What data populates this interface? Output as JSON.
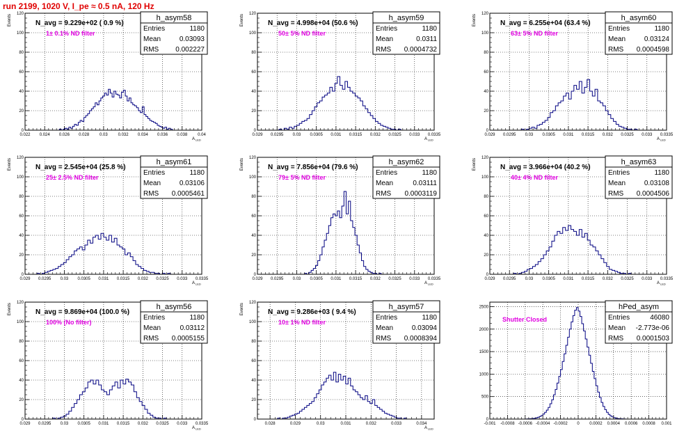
{
  "title": "run 2199,  1020 V, I_pe ≈ 0.5 nA, 120 Hz",
  "colors": {
    "title": "#e00000",
    "filter_label": "#e000e0",
    "histogram": "#000080",
    "grid": "#000000"
  },
  "chart_data": [
    {
      "type": "histogram",
      "name": "h_asym58",
      "n_avg_label": "N_avg = 9.229e+02 ( 0.9 %)",
      "filter_label": "1± 0.1% ND filter",
      "stats": [
        [
          "Entries",
          "1180"
        ],
        [
          "Mean",
          "0.03093"
        ],
        [
          "RMS",
          "0.002227"
        ]
      ],
      "ylabel": "Events",
      "xlabel": "A_LED",
      "xlim": [
        0.022,
        0.04
      ],
      "ylim": [
        0,
        120
      ],
      "xticks": [
        0.022,
        0.024,
        0.026,
        0.028,
        0.03,
        0.032,
        0.034,
        0.036,
        0.038,
        0.04
      ],
      "xtick_labels": [
        "0.022",
        "0.024",
        "0.026",
        "0.028",
        "0.03",
        "0.032",
        "0.034",
        "0.036",
        "0.038",
        "0.04"
      ],
      "yticks": [
        0,
        20,
        40,
        60,
        80,
        100,
        120
      ],
      "ytick_labels": [
        "0",
        "20",
        "40",
        "60",
        "80",
        "100",
        "120"
      ],
      "bin_edges": [
        0.0255,
        0.037
      ],
      "counts": [
        1,
        0,
        1,
        2,
        1,
        3,
        2,
        4,
        6,
        5,
        8,
        10,
        9,
        13,
        15,
        17,
        20,
        22,
        24,
        28,
        26,
        30,
        33,
        35,
        38,
        36,
        42,
        38,
        34,
        40,
        37,
        36,
        33,
        39,
        41,
        35,
        30,
        33,
        28,
        26,
        25,
        23,
        20,
        18,
        24,
        16,
        14,
        12,
        10,
        9,
        8,
        7,
        5,
        4,
        3,
        2,
        3,
        1,
        2,
        1
      ]
    },
    {
      "type": "histogram",
      "name": "h_asym59",
      "n_avg_label": "N_avg = 4.998e+04 (50.6 %)",
      "filter_label": "50± 5% ND filter",
      "stats": [
        [
          "Entries",
          "1180"
        ],
        [
          "Mean",
          "0.0311"
        ],
        [
          "RMS",
          "0.0004732"
        ]
      ],
      "ylabel": "Events",
      "xlabel": "A_LED",
      "xlim": [
        0.029,
        0.0335
      ],
      "ylim": [
        0,
        120
      ],
      "xticks": [
        0.029,
        0.0295,
        0.03,
        0.0305,
        0.031,
        0.0315,
        0.032,
        0.0325,
        0.033,
        0.0335
      ],
      "xtick_labels": [
        "0.029",
        "0.0295",
        "0.03",
        "0.0305",
        "0.031",
        "0.0315",
        "0.032",
        "0.0325",
        "0.033",
        "0.0335"
      ],
      "yticks": [
        0,
        20,
        40,
        60,
        80,
        100,
        120
      ],
      "ytick_labels": [
        "0",
        "20",
        "40",
        "60",
        "80",
        "100",
        "120"
      ],
      "bin_edges": [
        0.02955,
        0.03265
      ],
      "counts": [
        1,
        0,
        2,
        1,
        3,
        2,
        4,
        5,
        7,
        9,
        10,
        12,
        16,
        20,
        24,
        28,
        30,
        34,
        36,
        38,
        44,
        40,
        48,
        55,
        46,
        42,
        50,
        44,
        40,
        38,
        35,
        33,
        30,
        25,
        22,
        18,
        15,
        12,
        9,
        7,
        5,
        4,
        3,
        2,
        1,
        1,
        0,
        1
      ]
    },
    {
      "type": "histogram",
      "name": "h_asym60",
      "n_avg_label": "N_avg = 6.255e+04 (63.4 %)",
      "filter_label": "63± 5% ND filter",
      "stats": [
        [
          "Entries",
          "1180"
        ],
        [
          "Mean",
          "0.03124"
        ],
        [
          "RMS",
          "0.0004598"
        ]
      ],
      "ylabel": "Events",
      "xlabel": "A_LED",
      "xlim": [
        0.029,
        0.0335
      ],
      "ylim": [
        0,
        120
      ],
      "xticks": [
        0.029,
        0.0295,
        0.03,
        0.0305,
        0.031,
        0.0315,
        0.032,
        0.0325,
        0.033,
        0.0335
      ],
      "xtick_labels": [
        "0.029",
        "0.0295",
        "0.03",
        "0.0305",
        "0.031",
        "0.0315",
        "0.032",
        "0.0325",
        "0.033",
        "0.0335"
      ],
      "yticks": [
        0,
        20,
        40,
        60,
        80,
        100,
        120
      ],
      "ytick_labels": [
        "0",
        "20",
        "40",
        "60",
        "80",
        "100",
        "120"
      ],
      "bin_edges": [
        0.0298,
        0.03275
      ],
      "counts": [
        1,
        0,
        1,
        2,
        3,
        2,
        5,
        6,
        8,
        10,
        13,
        18,
        20,
        25,
        28,
        30,
        35,
        38,
        32,
        40,
        46,
        42,
        50,
        38,
        44,
        52,
        40,
        35,
        42,
        30,
        28,
        25,
        20,
        16,
        12,
        9,
        6,
        4,
        3,
        2,
        1,
        1,
        0,
        1
      ]
    },
    {
      "type": "histogram",
      "name": "h_asym61",
      "n_avg_label": "N_avg = 2.545e+04 (25.8 %)",
      "filter_label": "25± 2.5% ND filter",
      "stats": [
        [
          "Entries",
          "1180"
        ],
        [
          "Mean",
          "0.03106"
        ],
        [
          "RMS",
          "0.0005461"
        ]
      ],
      "ylabel": "Events",
      "xlabel": "A_LED",
      "xlim": [
        0.029,
        0.0335
      ],
      "ylim": [
        0,
        120
      ],
      "xticks": [
        0.029,
        0.0295,
        0.03,
        0.0305,
        0.031,
        0.0315,
        0.032,
        0.0325,
        0.033,
        0.0335
      ],
      "xtick_labels": [
        "0.029",
        "0.0295",
        "0.03",
        "0.0305",
        "0.031",
        "0.0315",
        "0.032",
        "0.0325",
        "0.033",
        "0.0335"
      ],
      "yticks": [
        0,
        20,
        40,
        60,
        80,
        100,
        120
      ],
      "ytick_labels": [
        "0",
        "20",
        "40",
        "60",
        "80",
        "100",
        "120"
      ],
      "bin_edges": [
        0.0293,
        0.0327
      ],
      "counts": [
        1,
        0,
        1,
        2,
        3,
        4,
        5,
        6,
        8,
        10,
        12,
        15,
        18,
        20,
        24,
        26,
        28,
        25,
        30,
        35,
        32,
        38,
        40,
        36,
        42,
        38,
        35,
        40,
        33,
        37,
        30,
        28,
        26,
        20,
        22,
        18,
        14,
        10,
        8,
        6,
        4,
        3,
        2,
        2,
        1,
        1,
        0,
        1,
        0,
        1
      ]
    },
    {
      "type": "histogram",
      "name": "h_asym62",
      "n_avg_label": "N_avg = 7.856e+04 (79.6 %)",
      "filter_label": "79± 5% ND filter",
      "stats": [
        [
          "Entries",
          "1180"
        ],
        [
          "Mean",
          "0.03111"
        ],
        [
          "RMS",
          "0.0003119"
        ]
      ],
      "ylabel": "Events",
      "xlabel": "A_LED",
      "xlim": [
        0.029,
        0.0335
      ],
      "ylim": [
        0,
        120
      ],
      "xticks": [
        0.029,
        0.0295,
        0.03,
        0.0305,
        0.031,
        0.0315,
        0.032,
        0.0325,
        0.033,
        0.0335
      ],
      "xtick_labels": [
        "0.029",
        "0.0295",
        "0.03",
        "0.0305",
        "0.031",
        "0.0315",
        "0.032",
        "0.0325",
        "0.033",
        "0.0335"
      ],
      "yticks": [
        0,
        20,
        40,
        60,
        80,
        100,
        120
      ],
      "ytick_labels": [
        "0",
        "20",
        "40",
        "60",
        "80",
        "100",
        "120"
      ],
      "bin_edges": [
        0.0302,
        0.03215
      ],
      "counts": [
        1,
        0,
        2,
        4,
        6,
        9,
        14,
        20,
        28,
        35,
        42,
        50,
        58,
        62,
        60,
        65,
        58,
        70,
        85,
        62,
        75,
        55,
        48,
        40,
        30,
        22,
        14,
        8,
        5,
        3,
        2,
        1,
        1,
        0,
        1
      ]
    },
    {
      "type": "histogram",
      "name": "h_asym63",
      "n_avg_label": "N_avg = 3.966e+04 (40.2 %)",
      "filter_label": "40± 4% ND filter",
      "stats": [
        [
          "Entries",
          "1180"
        ],
        [
          "Mean",
          "0.03108"
        ],
        [
          "RMS",
          "0.0004506"
        ]
      ],
      "ylabel": "Events",
      "xlabel": "A_LED",
      "xlim": [
        0.029,
        0.0335
      ],
      "ylim": [
        0,
        120
      ],
      "xticks": [
        0.029,
        0.0295,
        0.03,
        0.0305,
        0.031,
        0.0315,
        0.032,
        0.0325,
        0.033,
        0.0335
      ],
      "xtick_labels": [
        "0.029",
        "0.0295",
        "0.03",
        "0.0305",
        "0.031",
        "0.0315",
        "0.032",
        "0.0325",
        "0.033",
        "0.0335"
      ],
      "yticks": [
        0,
        20,
        40,
        60,
        80,
        100,
        120
      ],
      "ytick_labels": [
        "0",
        "20",
        "40",
        "60",
        "80",
        "100",
        "120"
      ],
      "bin_edges": [
        0.0296,
        0.0326
      ],
      "counts": [
        1,
        0,
        1,
        2,
        3,
        5,
        6,
        8,
        10,
        13,
        16,
        20,
        24,
        28,
        34,
        40,
        44,
        42,
        48,
        45,
        50,
        46,
        44,
        40,
        46,
        38,
        42,
        35,
        30,
        28,
        24,
        20,
        16,
        12,
        8,
        5,
        4,
        3,
        2,
        1,
        1,
        0,
        1
      ]
    },
    {
      "type": "histogram",
      "name": "h_asym56",
      "n_avg_label": "N_avg = 9.869e+04 (100.0 %)",
      "filter_label": "100% (No filter)",
      "stats": [
        [
          "Entries",
          "1180"
        ],
        [
          "Mean",
          "0.03112"
        ],
        [
          "RMS",
          "0.0005155"
        ]
      ],
      "ylabel": "Events",
      "xlabel": "A_LED",
      "xlim": [
        0.029,
        0.0335
      ],
      "ylim": [
        0,
        120
      ],
      "xticks": [
        0.029,
        0.0295,
        0.03,
        0.0305,
        0.031,
        0.0315,
        0.032,
        0.0325,
        0.033,
        0.0335
      ],
      "xtick_labels": [
        "0.029",
        "0.0295",
        "0.03",
        "0.0305",
        "0.031",
        "0.0315",
        "0.032",
        "0.0325",
        "0.033",
        "0.0335"
      ],
      "yticks": [
        0,
        20,
        40,
        60,
        80,
        100,
        120
      ],
      "ytick_labels": [
        "0",
        "20",
        "40",
        "60",
        "80",
        "100",
        "120"
      ],
      "bin_edges": [
        0.0297,
        0.0326
      ],
      "counts": [
        1,
        0,
        1,
        2,
        3,
        5,
        8,
        12,
        16,
        20,
        25,
        28,
        32,
        38,
        40,
        36,
        40,
        35,
        30,
        28,
        25,
        30,
        34,
        38,
        32,
        40,
        36,
        41,
        38,
        35,
        28,
        22,
        18,
        14,
        10,
        6,
        4,
        2,
        1,
        1,
        0,
        1
      ]
    },
    {
      "type": "histogram",
      "name": "h_asym57",
      "n_avg_label": "N_avg = 9.286e+03 ( 9.4 %)",
      "filter_label": "10± 1% ND filter",
      "stats": [
        [
          "Entries",
          "1180"
        ],
        [
          "Mean",
          "0.03094"
        ],
        [
          "RMS",
          "0.0008394"
        ]
      ],
      "ylabel": "Events",
      "xlabel": "A_LED",
      "xlim": [
        0.0275,
        0.0345
      ],
      "ylim": [
        0,
        120
      ],
      "xticks": [
        0.028,
        0.029,
        0.03,
        0.031,
        0.032,
        0.033,
        0.034
      ],
      "xtick_labels": [
        "0.028",
        "0.029",
        "0.03",
        "0.031",
        "0.032",
        "0.033",
        "0.034"
      ],
      "yticks": [
        0,
        20,
        40,
        60,
        80,
        100,
        120
      ],
      "ytick_labels": [
        "0",
        "20",
        "40",
        "60",
        "80",
        "100",
        "120"
      ],
      "bin_edges": [
        0.0283,
        0.0334
      ],
      "counts": [
        1,
        0,
        1,
        1,
        2,
        3,
        4,
        5,
        6,
        8,
        10,
        12,
        14,
        16,
        18,
        22,
        26,
        30,
        35,
        38,
        42,
        45,
        40,
        48,
        38,
        46,
        40,
        44,
        36,
        42,
        34,
        30,
        28,
        25,
        22,
        20,
        24,
        18,
        16,
        20,
        14,
        12,
        10,
        8,
        6,
        5,
        4,
        3,
        2,
        1,
        1,
        0,
        1
      ]
    },
    {
      "type": "histogram",
      "name": "hPed_asym",
      "n_avg_label": "",
      "filter_label": "Shutter Closed",
      "stats": [
        [
          "Entries",
          "46080"
        ],
        [
          "Mean",
          "-2.773e-06"
        ],
        [
          "RMS",
          "0.0001503"
        ]
      ],
      "ylabel": "",
      "xlabel": "",
      "xlim": [
        -0.001,
        0.001
      ],
      "ylim": [
        0,
        2600
      ],
      "xticks": [
        -0.001,
        -0.0008,
        -0.0006,
        -0.0004,
        -0.0002,
        0,
        0.0002,
        0.0004,
        0.0006,
        0.0008,
        0.001
      ],
      "xtick_labels": [
        "-0.001",
        "-0.0008",
        "-0.0006",
        "-0.0004",
        "-0.0002",
        "0",
        "0.0002",
        "0.0004",
        "0.0006",
        "0.0008",
        "0.001"
      ],
      "yticks": [
        0,
        500,
        1000,
        1500,
        2000,
        2500
      ],
      "ytick_labels": [
        "0",
        "500",
        "1000",
        "1500",
        "2000",
        "2500"
      ],
      "bin_edges": [
        -0.0006,
        0.0006
      ],
      "counts": [
        2,
        3,
        5,
        8,
        12,
        18,
        28,
        40,
        58,
        80,
        110,
        150,
        200,
        260,
        340,
        430,
        540,
        660,
        800,
        950,
        1100,
        1280,
        1450,
        1640,
        1820,
        2000,
        2160,
        2300,
        2420,
        2480,
        2400,
        2280,
        2120,
        1960,
        1780,
        1600,
        1420,
        1240,
        1060,
        900,
        740,
        600,
        480,
        370,
        280,
        210,
        150,
        104,
        72,
        48,
        32,
        20,
        12,
        8,
        5,
        3,
        2,
        1,
        1,
        1
      ]
    }
  ]
}
